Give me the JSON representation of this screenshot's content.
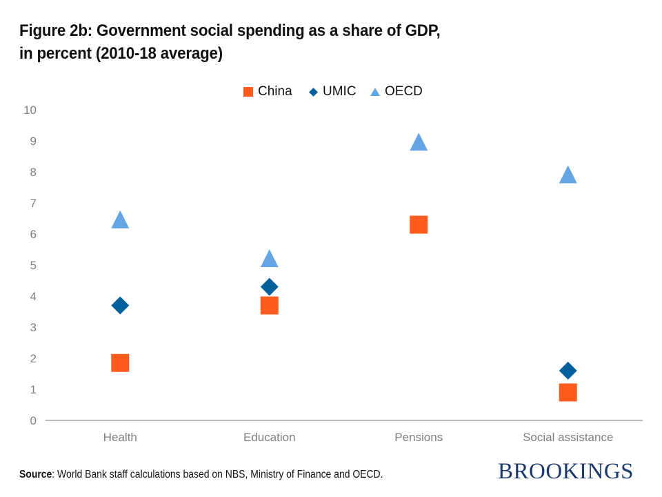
{
  "title": {
    "line1": "Figure 2b: Government social spending as a share of GDP,",
    "line2": "in percent (2010-18 average)"
  },
  "legend": [
    {
      "name": "China",
      "marker": "square-icon",
      "color": "#ff5b1c"
    },
    {
      "name": "UMIC",
      "marker": "diamond-icon",
      "color": "#00609c"
    },
    {
      "name": "OECD",
      "marker": "triangle-icon",
      "color": "#64a5e3"
    }
  ],
  "source": {
    "label": "Source",
    "text": ": World Bank staff calculations based on NBS, Ministry of Finance and OECD."
  },
  "brand": "BROOKINGS",
  "chart_data": {
    "type": "scatter",
    "title": "Figure 2b: Government social spending as a share of GDP, in percent (2010-18 average)",
    "xlabel": "",
    "ylabel": "",
    "categories": [
      "Health",
      "Education",
      "Pensions",
      "Social assistance"
    ],
    "ylim": [
      0,
      10
    ],
    "yticks": [
      0,
      1,
      2,
      3,
      4,
      5,
      6,
      7,
      8,
      9,
      10
    ],
    "grid": false,
    "legend_position": "top-center",
    "series": [
      {
        "name": "China",
        "marker": "square",
        "color": "#ff5b1c",
        "values": [
          1.85,
          3.7,
          6.3,
          0.9
        ]
      },
      {
        "name": "UMIC",
        "marker": "diamond",
        "color": "#00609c",
        "values": [
          3.7,
          4.3,
          null,
          1.6
        ]
      },
      {
        "name": "OECD",
        "marker": "triangle",
        "color": "#64a5e3",
        "values": [
          6.45,
          5.2,
          8.95,
          7.9
        ]
      }
    ]
  }
}
